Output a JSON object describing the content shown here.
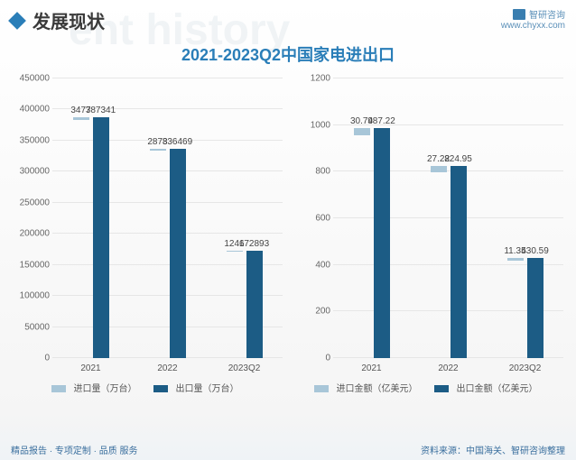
{
  "header": {
    "title": "发展现状",
    "brand": "智研咨询",
    "url": "www.chyxx.com"
  },
  "watermark_ghost": "ent history",
  "title": "2021-2023Q2中国家电进出口",
  "chart_left": {
    "ymax": 450000,
    "ytick_step": 50000,
    "categories": [
      "2021",
      "2022",
      "2023Q2"
    ],
    "series": [
      {
        "name": "进口量（万台）",
        "color": "#a8c6d8",
        "values": [
          3477,
          2878,
          1246
        ]
      },
      {
        "name": "出口量（万台）",
        "color": "#1c5c85",
        "values": [
          387341,
          336469,
          172893
        ]
      }
    ]
  },
  "chart_right": {
    "ymax": 1200,
    "ytick_step": 200,
    "categories": [
      "2021",
      "2022",
      "2023Q2"
    ],
    "series": [
      {
        "name": "进口金额（亿美元）",
        "color": "#a8c6d8",
        "values": [
          30.74,
          27.22,
          11.35
        ]
      },
      {
        "name": "出口金额（亿美元）",
        "color": "#1c5c85",
        "values": [
          987.22,
          824.95,
          430.59
        ]
      }
    ]
  },
  "footer": {
    "left": "精品报告 · 专项定制 · 品质 服务",
    "right": "资料来源：中国海关、智研咨询整理"
  }
}
